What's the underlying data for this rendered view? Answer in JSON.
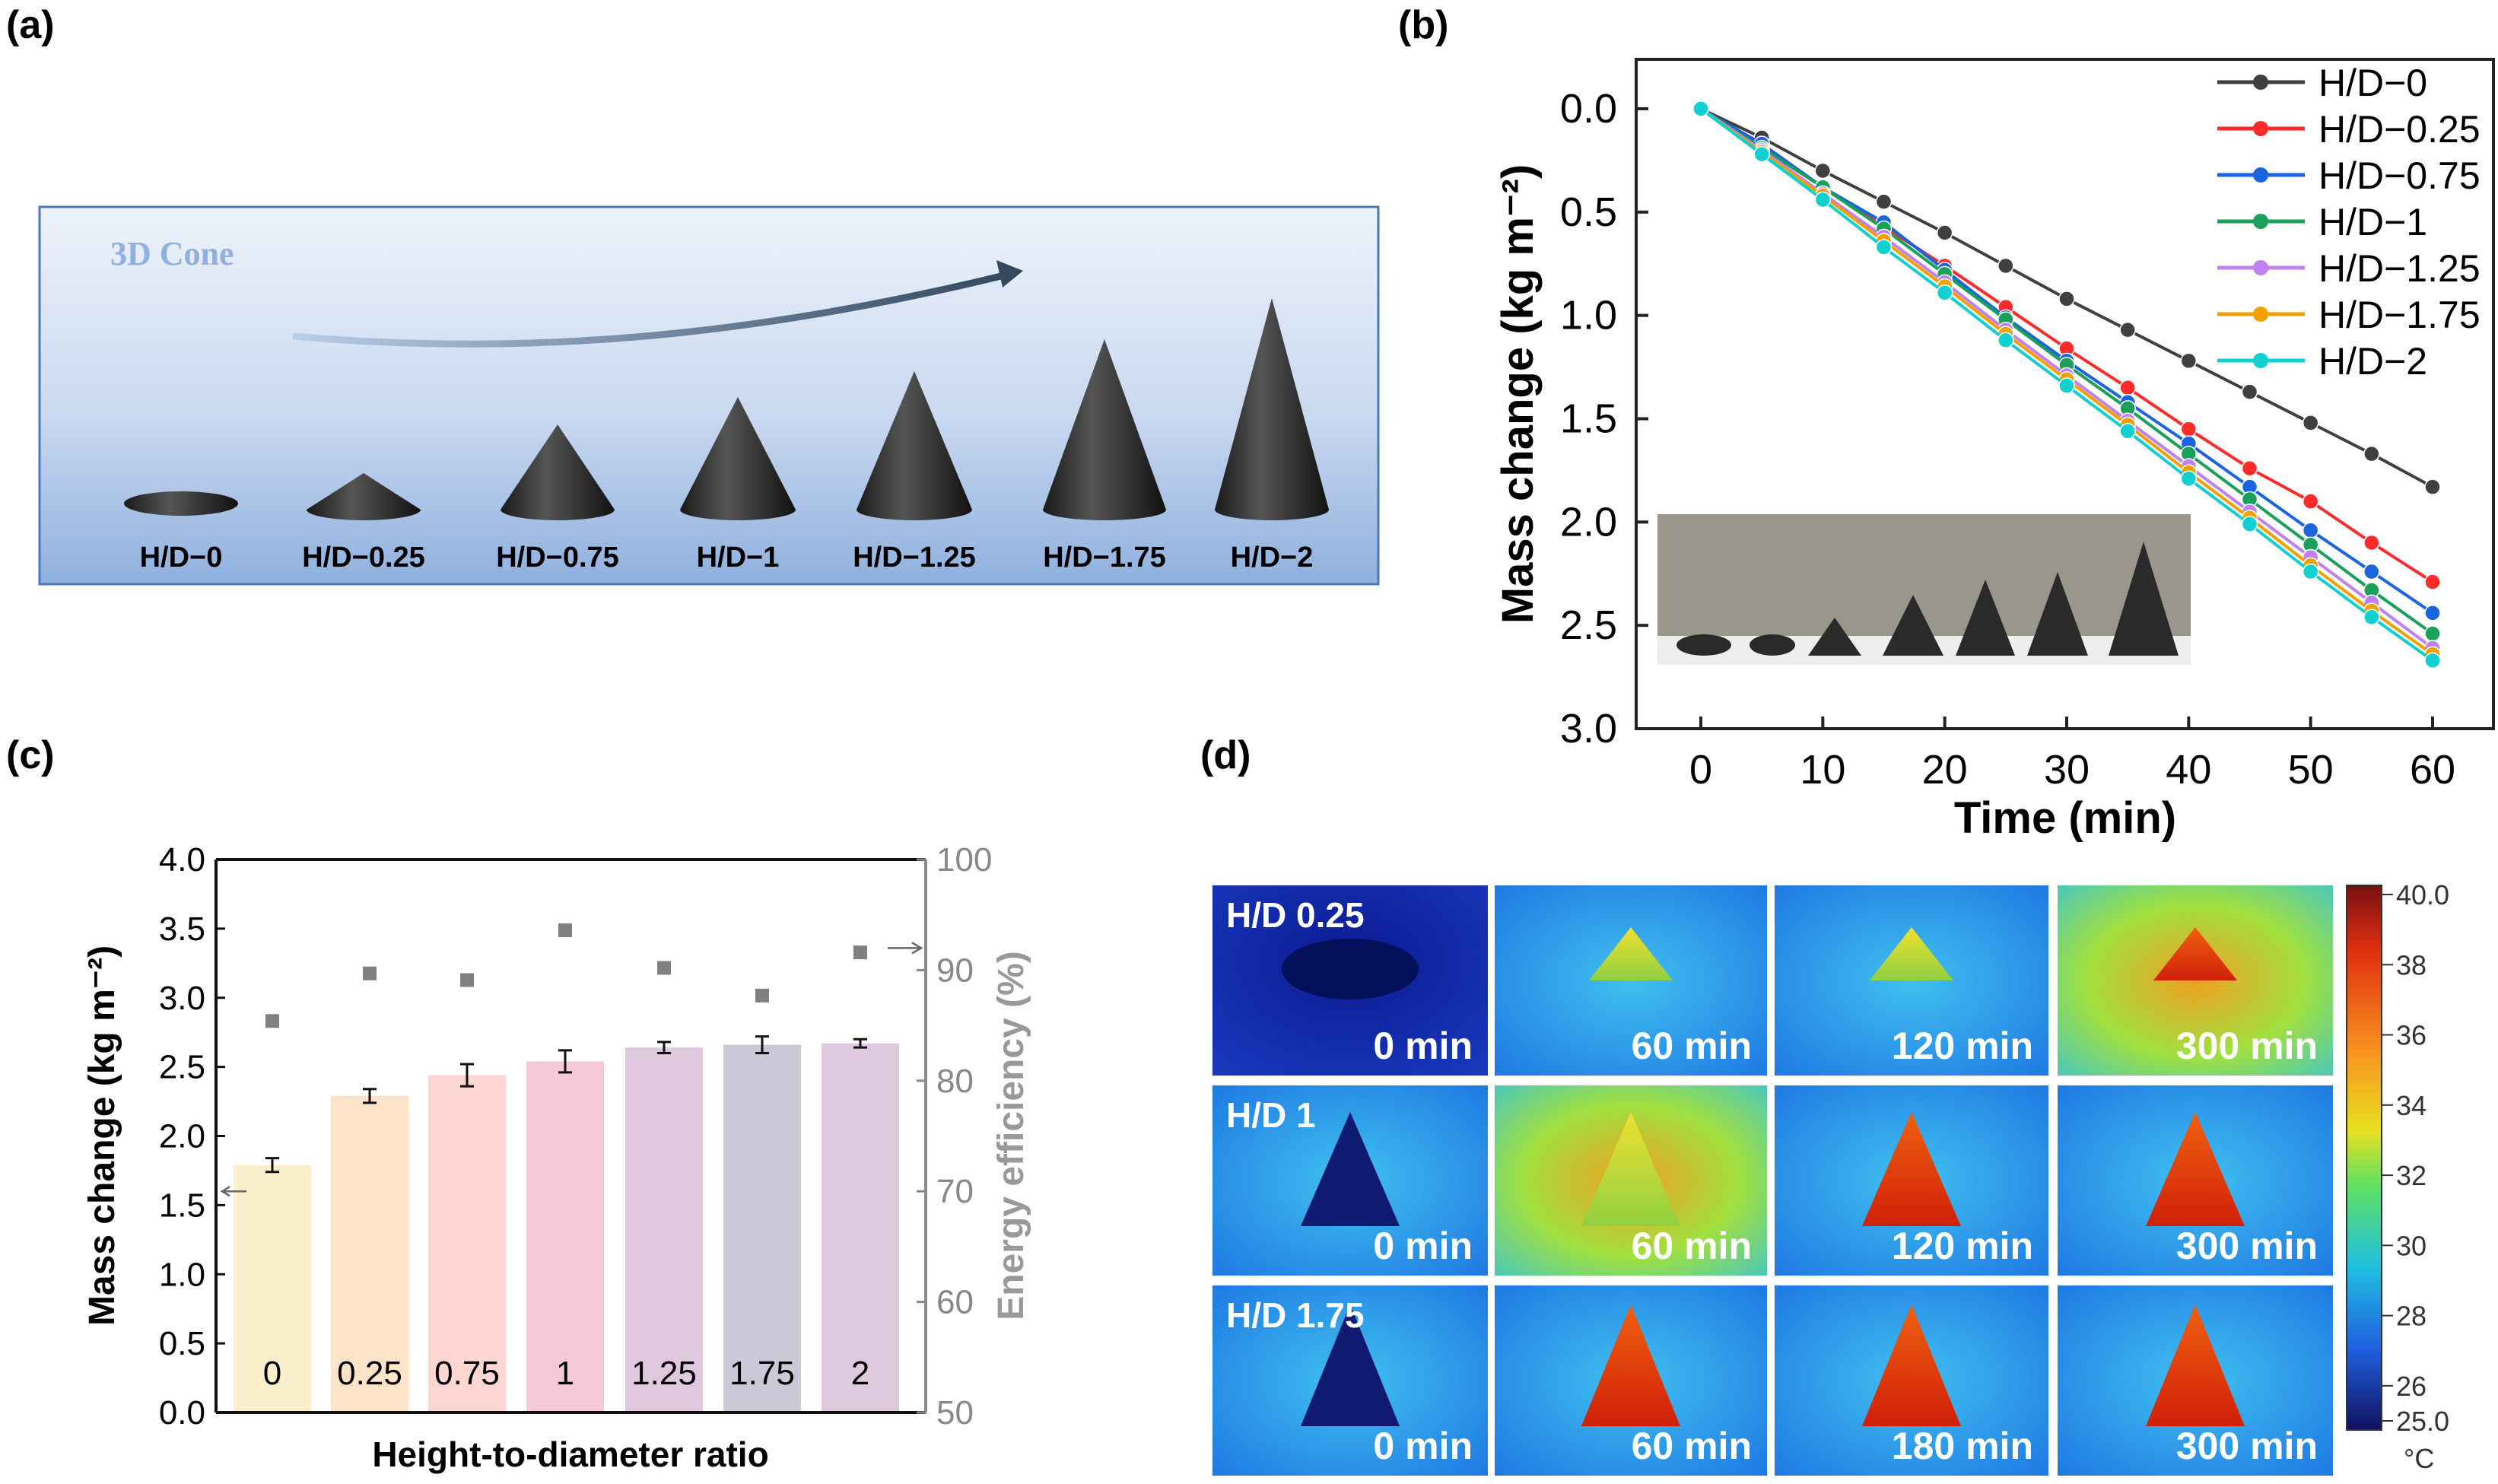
{
  "panel_labels": {
    "a": "(a)",
    "b": "(b)",
    "c": "(c)",
    "d": "(d)"
  },
  "panel_a": {
    "title": "3D Cone",
    "cones": [
      "H/D−0",
      "H/D−0.25",
      "H/D−0.75",
      "H/D−1",
      "H/D−1.25",
      "H/D−1.75",
      "H/D−2"
    ]
  },
  "colors": {
    "H/D-0": "#404040",
    "H/D-0.25": "#ff2a2a",
    "H/D-0.75": "#1a64e0",
    "H/D-1": "#1aa05a",
    "H/D-1.25": "#c080f0",
    "H/D-1.75": "#f0a000",
    "H/D-2": "#10d0d0",
    "efficiency": "#808080"
  },
  "chart_data": [
    {
      "type": "line",
      "title": "",
      "xlabel": "Time (min)",
      "ylabel": "Mass change (kg m⁻²)",
      "x": [
        0,
        5,
        10,
        15,
        20,
        25,
        30,
        35,
        40,
        45,
        50,
        55,
        60
      ],
      "xlim": [
        -5,
        63
      ],
      "ylim": [
        0.0,
        3.0
      ],
      "y_inverted": true,
      "xticks": [
        "0",
        "10",
        "20",
        "30",
        "40",
        "50",
        "60"
      ],
      "yticks": [
        "0.0",
        "0.5",
        "1.0",
        "1.5",
        "2.0",
        "2.5",
        "3.0"
      ],
      "legend_position": "top-right",
      "series": [
        {
          "name": "H/D−0",
          "key": "H/D-0",
          "values": [
            0,
            0.14,
            0.3,
            0.45,
            0.6,
            0.76,
            0.92,
            1.07,
            1.22,
            1.37,
            1.52,
            1.67,
            1.83
          ]
        },
        {
          "name": "H/D−0.25",
          "key": "H/D-0.25",
          "values": [
            0,
            0.17,
            0.38,
            0.57,
            0.76,
            0.96,
            1.16,
            1.35,
            1.55,
            1.74,
            1.9,
            2.1,
            2.29
          ]
        },
        {
          "name": "H/D−0.75",
          "key": "H/D-0.75",
          "values": [
            0,
            0.17,
            0.38,
            0.55,
            0.78,
            1.01,
            1.22,
            1.42,
            1.62,
            1.83,
            2.04,
            2.24,
            2.44
          ]
        },
        {
          "name": "H/D−1",
          "key": "H/D-1",
          "values": [
            0,
            0.19,
            0.38,
            0.58,
            0.8,
            1.02,
            1.24,
            1.45,
            1.67,
            1.89,
            2.11,
            2.33,
            2.54
          ]
        },
        {
          "name": "H/D−1.25",
          "key": "H/D-1.25",
          "values": [
            0,
            0.2,
            0.41,
            0.62,
            0.84,
            1.07,
            1.29,
            1.51,
            1.73,
            1.95,
            2.17,
            2.39,
            2.61
          ]
        },
        {
          "name": "H/D−1.75",
          "key": "H/D-1.75",
          "values": [
            0,
            0.21,
            0.42,
            0.64,
            0.86,
            1.09,
            1.31,
            1.53,
            1.76,
            1.98,
            2.21,
            2.43,
            2.64
          ]
        },
        {
          "name": "H/D−2",
          "key": "H/D-2",
          "values": [
            0,
            0.22,
            0.44,
            0.67,
            0.89,
            1.12,
            1.34,
            1.56,
            1.79,
            2.01,
            2.24,
            2.46,
            2.67
          ]
        }
      ]
    },
    {
      "type": "bar",
      "title": "",
      "xlabel": "Height-to-diameter ratio",
      "ylabel": "Mass change (kg m⁻²)",
      "y2label": "Energy efficiency (%)",
      "categories": [
        "0",
        "0.25",
        "0.75",
        "1",
        "1.25",
        "1.75",
        "2"
      ],
      "ylim": [
        0.0,
        4.0
      ],
      "y2lim": [
        50,
        100
      ],
      "yticks": [
        "0.0",
        "0.5",
        "1.0",
        "1.5",
        "2.0",
        "2.5",
        "3.0",
        "3.5",
        "4.0"
      ],
      "y2ticks": [
        "50",
        "60",
        "70",
        "80",
        "90",
        "100"
      ],
      "series": [
        {
          "name": "Mass change",
          "axis": "left",
          "values": [
            1.79,
            2.29,
            2.44,
            2.54,
            2.64,
            2.66,
            2.67
          ],
          "errors": [
            0.05,
            0.05,
            0.08,
            0.08,
            0.04,
            0.06,
            0.03
          ],
          "bar_colors": [
            "#fcefcc",
            "#fde3c8",
            "#fdd6d2",
            "#f6c9d8",
            "#e0c8df",
            "#c9c9d8",
            "#dfc9df"
          ]
        },
        {
          "name": "Energy efficiency",
          "axis": "right",
          "type": "scatter",
          "values": [
            85.4,
            89.7,
            89.1,
            93.6,
            90.2,
            87.7,
            91.6
          ]
        }
      ]
    }
  ],
  "panel_d": {
    "rows": [
      {
        "label": "H/D 0.25",
        "times": [
          "0 min",
          "60 min",
          "120 min",
          "300 min"
        ]
      },
      {
        "label": "H/D 1",
        "times": [
          "0 min",
          "60 min",
          "120 min",
          "300 min"
        ]
      },
      {
        "label": "H/D 1.75",
        "times": [
          "0 min",
          "60 min",
          "180 min",
          "300 min"
        ]
      }
    ],
    "colorbar": {
      "ticks": [
        "40.0",
        "38",
        "36",
        "34",
        "32",
        "30",
        "28",
        "26",
        "25.0"
      ],
      "unit": "°C",
      "range": [
        25.0,
        40.0
      ]
    }
  }
}
